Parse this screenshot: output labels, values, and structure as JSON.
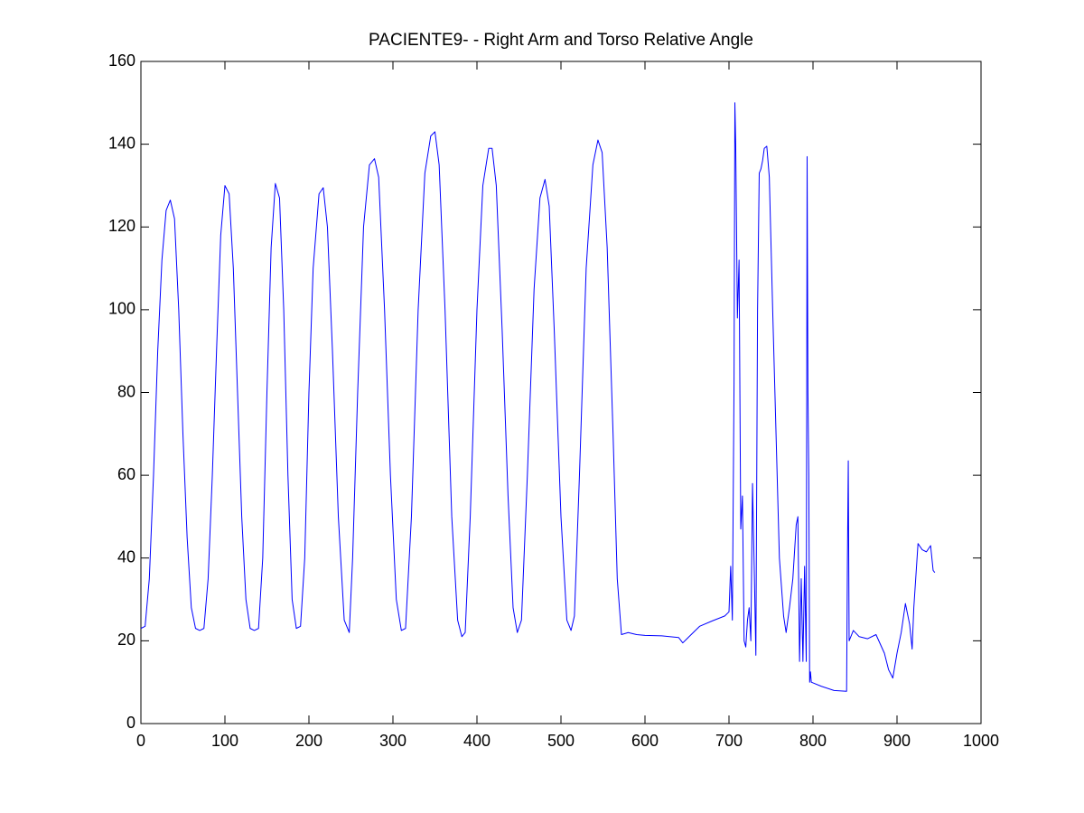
{
  "chart_data": {
    "type": "line",
    "title": "PACIENTE9- - Right Arm and Torso Relative Angle",
    "x": [
      0,
      5,
      10,
      15,
      20,
      25,
      30,
      35,
      40,
      45,
      50,
      55,
      60,
      65,
      70,
      75,
      80,
      85,
      90,
      95,
      100,
      105,
      110,
      115,
      120,
      125,
      130,
      135,
      140,
      145,
      150,
      155,
      160,
      165,
      170,
      175,
      180,
      185,
      190,
      195,
      200,
      205,
      212,
      217,
      222,
      228,
      235,
      242,
      248,
      252,
      258,
      265,
      272,
      278,
      283,
      290,
      297,
      304,
      310,
      315,
      322,
      330,
      338,
      345,
      350,
      355,
      362,
      370,
      377,
      382,
      386,
      392,
      400,
      407,
      414,
      418,
      423,
      430,
      437,
      443,
      448,
      453,
      460,
      468,
      475,
      481,
      486,
      492,
      500,
      507,
      512,
      516,
      522,
      530,
      538,
      544,
      549,
      555,
      562,
      567,
      572,
      580,
      590,
      600,
      620,
      640,
      645,
      655,
      665,
      680,
      695,
      700,
      702,
      704,
      706,
      707,
      708,
      710,
      712,
      714,
      716,
      718,
      720,
      722,
      724,
      726,
      728,
      730,
      732,
      734,
      736,
      738,
      740,
      742,
      745,
      748,
      752,
      756,
      760,
      765,
      768,
      772,
      776,
      780,
      782,
      784,
      786,
      788,
      790,
      792,
      793,
      794,
      795,
      796,
      797,
      798,
      810,
      825,
      840,
      841,
      842,
      843,
      848,
      855,
      865,
      875,
      885,
      890,
      895,
      900,
      905,
      910,
      915,
      918,
      920,
      925,
      930,
      935,
      940,
      943,
      945
    ],
    "series": [
      {
        "name": null,
        "color": "#0000ff",
        "values": [
          23,
          23.5,
          35,
          60,
          90,
          112,
          124,
          126.5,
          122,
          100,
          70,
          45,
          28,
          23,
          22.5,
          23,
          35,
          60,
          90,
          118,
          130,
          128,
          110,
          80,
          50,
          30,
          23,
          22.5,
          23,
          40,
          80,
          115,
          130.5,
          127,
          100,
          60,
          30,
          23,
          23.5,
          40,
          80,
          110,
          128,
          129.5,
          120,
          90,
          50,
          25,
          22,
          40,
          80,
          120,
          135,
          136.5,
          132,
          100,
          60,
          30,
          22.5,
          23,
          50,
          100,
          133,
          142,
          143,
          135,
          100,
          50,
          25,
          21,
          22,
          50,
          100,
          130,
          139,
          139,
          130,
          95,
          55,
          28,
          22,
          25,
          60,
          105,
          127,
          131.5,
          125,
          95,
          50,
          25,
          22.5,
          26,
          60,
          110,
          135,
          141,
          138,
          115,
          70,
          35,
          21.5,
          22,
          21.5,
          21.3,
          21.2,
          20.8,
          19.5,
          21.5,
          23.5,
          24.8,
          26,
          27,
          38,
          25,
          82,
          150,
          140,
          98,
          112,
          47,
          55,
          20,
          18.5,
          25,
          28,
          20,
          58,
          38,
          16.5,
          100,
          133,
          134,
          136,
          139,
          139.5,
          132,
          100,
          70,
          40,
          26,
          22,
          28,
          35,
          48,
          50,
          15,
          35,
          15,
          38,
          15,
          137,
          80,
          60,
          10,
          12.5,
          10,
          9,
          8,
          7.8,
          40,
          63.5,
          20,
          22.5,
          21,
          20.5,
          21.5,
          17,
          13,
          11,
          17,
          22,
          29,
          24,
          18,
          28,
          43.5,
          42,
          41.5,
          43,
          37,
          36.5
        ]
      }
    ],
    "xlim": [
      0,
      1000
    ],
    "xticks": [
      0,
      100,
      200,
      300,
      400,
      500,
      600,
      700,
      800,
      900,
      1000
    ],
    "ylim": [
      0,
      160
    ],
    "yticks": [
      0,
      20,
      40,
      60,
      80,
      100,
      120,
      140,
      160
    ]
  }
}
